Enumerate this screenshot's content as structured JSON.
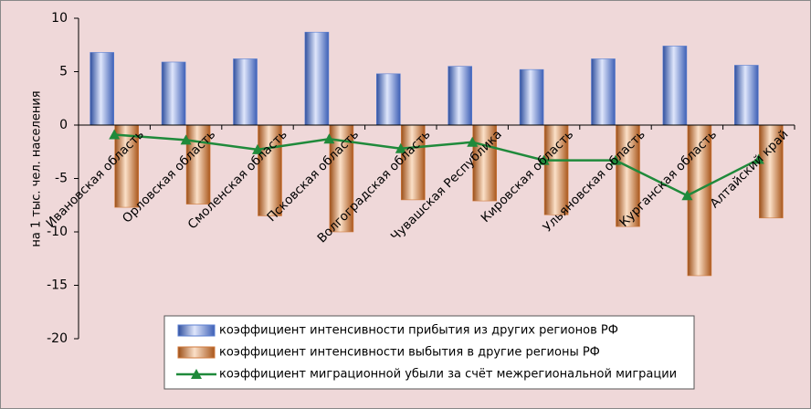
{
  "chart_data": {
    "type": "bar",
    "y_label": "на 1 тыс. чел. населения",
    "categories": [
      "Ивановская область",
      "Орловская область",
      "Смоленская область",
      "Псковская область",
      "Волгоградская область",
      "Чувашская Республика",
      "Кировская область",
      "Ульяновская область",
      "Курганская область",
      "Алтайский край"
    ],
    "series": [
      {
        "name": "коэффициент интенсивности прибытия из других регионов РФ",
        "type": "bar",
        "color": "#5b7fd1",
        "values": [
          6.8,
          5.9,
          6.2,
          8.7,
          4.8,
          5.5,
          5.2,
          6.2,
          7.4,
          5.6
        ]
      },
      {
        "name": "коэффициент интенсивности выбытия в другие регионы РФ",
        "type": "bar",
        "color": "#d07a3c",
        "values": [
          -7.7,
          -7.4,
          -8.5,
          -10.0,
          -7.0,
          -7.1,
          -8.4,
          -9.5,
          -14.1,
          -8.7
        ]
      },
      {
        "name": "коэффициент миграционной убыли за счёт межрегиональной миграции",
        "type": "line",
        "color": "#1f8a3b",
        "values": [
          -0.9,
          -1.4,
          -2.3,
          -1.3,
          -2.2,
          -1.6,
          -3.3,
          -3.3,
          -6.6,
          -3.2
        ]
      }
    ],
    "ylim": [
      -20,
      10
    ],
    "yticks": [
      10,
      5,
      0,
      -5,
      -10,
      -15,
      -20
    ],
    "grid": false
  }
}
